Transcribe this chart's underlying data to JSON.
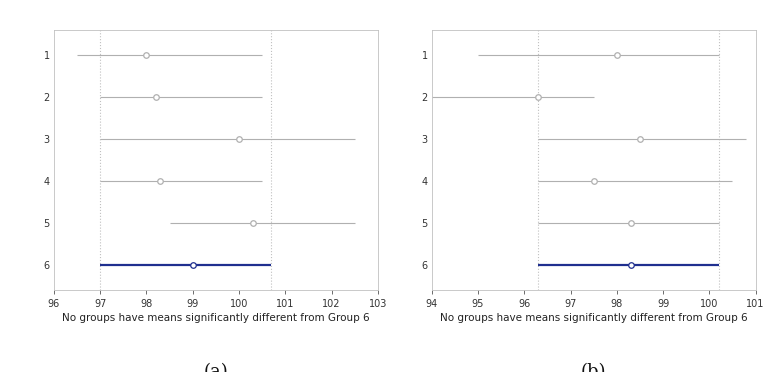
{
  "panel_a": {
    "xlim": [
      96,
      103
    ],
    "xticks": [
      96,
      97,
      98,
      99,
      100,
      101,
      102,
      103
    ],
    "vlines": [
      97.0,
      100.7
    ],
    "groups": [
      {
        "y": 1,
        "mean": 98.0,
        "lo": 96.5,
        "hi": 100.5,
        "ref": false
      },
      {
        "y": 2,
        "mean": 98.2,
        "lo": 97.0,
        "hi": 100.5,
        "ref": false
      },
      {
        "y": 3,
        "mean": 100.0,
        "lo": 97.0,
        "hi": 102.5,
        "ref": false
      },
      {
        "y": 4,
        "mean": 98.3,
        "lo": 97.0,
        "hi": 100.5,
        "ref": false
      },
      {
        "y": 5,
        "mean": 100.3,
        "lo": 98.5,
        "hi": 102.5,
        "ref": false
      },
      {
        "y": 6,
        "mean": 99.0,
        "lo": 97.0,
        "hi": 100.7,
        "ref": true
      }
    ],
    "xlabel": "No groups have means significantly different from Group 6",
    "label": "(a)"
  },
  "panel_b": {
    "xlim": [
      94,
      101
    ],
    "xticks": [
      94,
      95,
      96,
      97,
      98,
      99,
      100,
      101
    ],
    "vlines": [
      96.3,
      100.2
    ],
    "groups": [
      {
        "y": 1,
        "mean": 98.0,
        "lo": 95.0,
        "hi": 100.2,
        "ref": false
      },
      {
        "y": 2,
        "mean": 96.3,
        "lo": 94.0,
        "hi": 97.5,
        "ref": false
      },
      {
        "y": 3,
        "mean": 98.5,
        "lo": 96.3,
        "hi": 100.8,
        "ref": false
      },
      {
        "y": 4,
        "mean": 97.5,
        "lo": 96.3,
        "hi": 100.5,
        "ref": false
      },
      {
        "y": 5,
        "mean": 98.3,
        "lo": 96.3,
        "hi": 100.2,
        "ref": false
      },
      {
        "y": 6,
        "mean": 98.3,
        "lo": 96.3,
        "hi": 100.2,
        "ref": true
      }
    ],
    "xlabel": "No groups have means significantly different from Group 6",
    "label": "(b)"
  },
  "background_color": "#ffffff",
  "gray_color": "#b0b0b0",
  "blue_color": "#1f2f8f",
  "marker": "o",
  "markersize": 4,
  "linewidth_ref": 1.6,
  "linewidth_other": 0.8,
  "vline_color": "#c0c0c0",
  "spine_color": "#c0c0c0",
  "label_fontsize": 13,
  "xlabel_fontsize": 7.5,
  "tick_fontsize": 7.0
}
